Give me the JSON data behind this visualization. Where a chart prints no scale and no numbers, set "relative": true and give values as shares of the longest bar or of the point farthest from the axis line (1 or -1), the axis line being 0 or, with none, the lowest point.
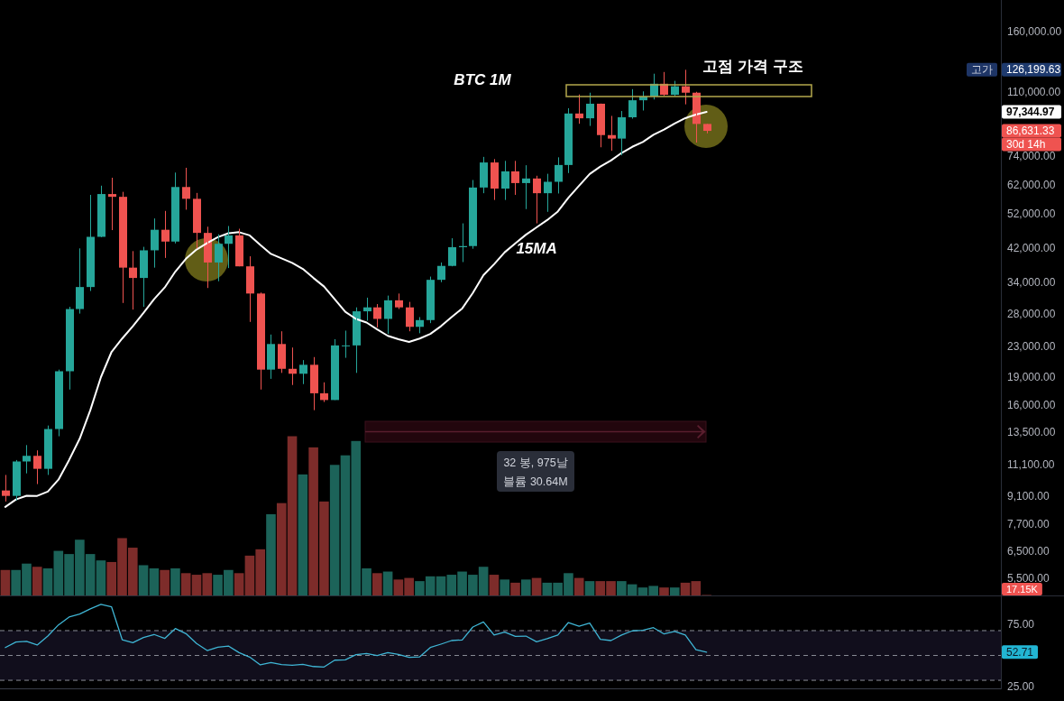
{
  "chart_data": [
    {
      "type": "candlestick",
      "title": "BTC 1M",
      "tick_labels": "y",
      "log": true,
      "ylim": [
        4950,
        194000
      ],
      "yticks": [
        {
          "value": 160000,
          "label": "160,000.00"
        },
        {
          "value": 110000,
          "label": "110,000.00"
        },
        {
          "value": 74000,
          "label": "74,000.00"
        },
        {
          "value": 62000,
          "label": "62,000.00"
        },
        {
          "value": 52000,
          "label": "52,000.00"
        },
        {
          "value": 42000,
          "label": "42,000.00"
        },
        {
          "value": 34000,
          "label": "34,000.00"
        },
        {
          "value": 28000,
          "label": "28,000.00"
        },
        {
          "value": 23000,
          "label": "23,000.00"
        },
        {
          "value": 19000,
          "label": "19,000.00"
        },
        {
          "value": 16000,
          "label": "16,000.00"
        },
        {
          "value": 13500,
          "label": "13,500.00"
        },
        {
          "value": 11100,
          "label": "11,100.00"
        },
        {
          "value": 9100,
          "label": "9,100.00"
        },
        {
          "value": 7700,
          "label": "7,700.00"
        },
        {
          "value": 6500,
          "label": "6,500.00"
        },
        {
          "value": 5500,
          "label": "5,500.00"
        }
      ],
      "categories": [
        null,
        null,
        null,
        null,
        null,
        null,
        null,
        null,
        null,
        null,
        null,
        null,
        null,
        null,
        null,
        null,
        null,
        null,
        null,
        null,
        null,
        null,
        null,
        null,
        null,
        null,
        null,
        null,
        null,
        null,
        null,
        null,
        null,
        null,
        null,
        null,
        null,
        null,
        null,
        null,
        null,
        null,
        null,
        null,
        null,
        null,
        null,
        null,
        null,
        null,
        null,
        null,
        null,
        null,
        null,
        null,
        null,
        null,
        null,
        null,
        null,
        null,
        null,
        null,
        null,
        null,
        null
      ],
      "ohlc": [
        [
          9450,
          10400,
          8830,
          9140
        ],
        [
          9140,
          11400,
          8890,
          11300
        ],
        [
          11300,
          12500,
          10500,
          11700
        ],
        [
          11700,
          12100,
          9830,
          10800
        ],
        [
          10800,
          14100,
          10400,
          13800
        ],
        [
          13800,
          19900,
          13200,
          19700
        ],
        [
          19700,
          29300,
          17600,
          28900
        ],
        [
          28900,
          42000,
          28100,
          33100
        ],
        [
          33100,
          58400,
          32300,
          45100
        ],
        [
          45100,
          61800,
          45000,
          58700
        ],
        [
          58700,
          64900,
          47000,
          57700
        ],
        [
          57700,
          59500,
          30000,
          37300
        ],
        [
          37300,
          41300,
          28800,
          35000
        ],
        [
          35000,
          42400,
          29300,
          41500
        ],
        [
          41500,
          50500,
          37300,
          47100
        ],
        [
          47100,
          52900,
          39600,
          43800
        ],
        [
          43800,
          67000,
          43300,
          61300
        ],
        [
          61300,
          69000,
          53300,
          57000
        ],
        [
          57000,
          59100,
          42000,
          46200
        ],
        [
          46200,
          48000,
          32900,
          38500
        ],
        [
          38500,
          45800,
          34300,
          43200
        ],
        [
          43200,
          48200,
          37200,
          45500
        ],
        [
          45500,
          47400,
          37600,
          37600
        ],
        [
          37600,
          40000,
          26700,
          31800
        ],
        [
          31800,
          32000,
          17600,
          19900
        ],
        [
          19900,
          24700,
          18800,
          23300
        ],
        [
          23300,
          25200,
          19500,
          20000
        ],
        [
          20000,
          22800,
          18100,
          19400
        ],
        [
          19400,
          21100,
          18200,
          20500
        ],
        [
          20500,
          21500,
          15500,
          17200
        ],
        [
          17200,
          18400,
          16300,
          16500
        ],
        [
          16500,
          24000,
          16500,
          23100
        ],
        [
          23100,
          25300,
          21400,
          23100
        ],
        [
          23100,
          29200,
          19500,
          28500
        ],
        [
          28500,
          31000,
          26900,
          29200
        ],
        [
          29200,
          29800,
          25800,
          27200
        ],
        [
          27200,
          31400,
          24800,
          30500
        ],
        [
          30500,
          31800,
          28900,
          29200
        ],
        [
          29200,
          30200,
          25200,
          25900
        ],
        [
          25900,
          27500,
          24900,
          27000
        ],
        [
          27000,
          35300,
          26500,
          34600
        ],
        [
          34600,
          38500,
          34100,
          37700
        ],
        [
          37700,
          44700,
          37600,
          42300
        ],
        [
          42300,
          49000,
          38600,
          42600
        ],
        [
          42600,
          64000,
          41900,
          61100
        ],
        [
          61100,
          73800,
          59000,
          71300
        ],
        [
          71300,
          72800,
          56600,
          60700
        ],
        [
          60700,
          72000,
          56600,
          67500
        ],
        [
          67500,
          72000,
          58400,
          62800
        ],
        [
          62800,
          70100,
          53500,
          64600
        ],
        [
          64600,
          65700,
          49000,
          59000
        ],
        [
          59000,
          66500,
          52600,
          63300
        ],
        [
          63300,
          73600,
          58900,
          70200
        ],
        [
          70200,
          99600,
          66800,
          96400
        ],
        [
          96400,
          108400,
          90500,
          93600
        ],
        [
          93600,
          109600,
          89300,
          102400
        ],
        [
          102400,
          102500,
          78300,
          84400
        ],
        [
          84400,
          95000,
          76600,
          82600
        ],
        [
          82600,
          97900,
          74500,
          94200
        ],
        [
          94200,
          112000,
          93400,
          104600
        ],
        [
          104600,
          110500,
          98200,
          107100
        ],
        [
          107100,
          123200,
          105100,
          115800
        ],
        [
          115800,
          124500,
          107400,
          108200
        ],
        [
          108200,
          117900,
          107300,
          114000
        ],
        [
          114000,
          126199.63,
          102000,
          109600
        ],
        [
          109600,
          110200,
          80600,
          90400
        ],
        [
          90400,
          90400,
          85300,
          86631.33
        ]
      ],
      "colors": [
        "#ef5350",
        "#26a69a",
        "#26a69a",
        "#ef5350",
        "#26a69a",
        "#26a69a",
        "#26a69a",
        "#26a69a",
        "#26a69a",
        "#26a69a",
        "#ef5350",
        "#ef5350",
        "#ef5350",
        "#26a69a",
        "#26a69a",
        "#ef5350",
        "#26a69a",
        "#ef5350",
        "#ef5350",
        "#ef5350",
        "#26a69a",
        "#26a69a",
        "#ef5350",
        "#ef5350",
        "#ef5350",
        "#26a69a",
        "#ef5350",
        "#ef5350",
        "#26a69a",
        "#ef5350",
        "#ef5350",
        "#26a69a",
        "#26a69a",
        "#26a69a",
        "#26a69a",
        "#ef5350",
        "#26a69a",
        "#ef5350",
        "#ef5350",
        "#26a69a",
        "#26a69a",
        "#26a69a",
        "#26a69a",
        "#26a69a",
        "#26a69a",
        "#26a69a",
        "#ef5350",
        "#26a69a",
        "#ef5350",
        "#26a69a",
        "#ef5350",
        "#26a69a",
        "#26a69a",
        "#26a69a",
        "#ef5350",
        "#26a69a",
        "#ef5350",
        "#ef5350",
        "#26a69a",
        "#26a69a",
        "#26a69a",
        "#26a69a",
        "#ef5350",
        "#26a69a",
        "#ef5350",
        "#ef5350",
        "#ef5350"
      ],
      "series": [
        {
          "type": "line",
          "name": "15MA",
          "color": "#ffffff",
          "values": [
            8540,
            8940,
            9150,
            9140,
            9390,
            10100,
            11400,
            13000,
            15500,
            19000,
            22200,
            24100,
            26000,
            28200,
            30700,
            33000,
            36400,
            39400,
            41700,
            43400,
            45000,
            46100,
            46400,
            45500,
            42900,
            40600,
            39500,
            38400,
            37000,
            35000,
            33200,
            30700,
            28400,
            27200,
            26600,
            25500,
            24500,
            24000,
            23600,
            24100,
            24800,
            26000,
            27500,
            29000,
            31900,
            35600,
            38100,
            41000,
            43300,
            45700,
            47800,
            50000,
            52700,
            57400,
            61800,
            66400,
            69500,
            72200,
            75600,
            78500,
            80900,
            84600,
            87300,
            90700,
            93700,
            95800,
            97344.97
          ]
        }
      ],
      "annotations": [
        "고가",
        "126,199.63",
        "97,344.97",
        "86,631.33",
        "30d 14h",
        "고점 가격 구조",
        "32 봉, 975날",
        "블륨 30.64M"
      ]
    },
    {
      "type": "bar",
      "relative": true,
      "categories": [
        null,
        null,
        null,
        null,
        null,
        null,
        null,
        null,
        null,
        null,
        null,
        null,
        null,
        null,
        null,
        null,
        null,
        null,
        null,
        null,
        null,
        null,
        null,
        null,
        null,
        null,
        null,
        null,
        null,
        null,
        null,
        null,
        null,
        null,
        null,
        null,
        null,
        null,
        null,
        null,
        null,
        null,
        null,
        null,
        null,
        null,
        null,
        null,
        null,
        null,
        null,
        null,
        null,
        null,
        null,
        null,
        null,
        null,
        null,
        null,
        null,
        null,
        null,
        null,
        null,
        null,
        null
      ],
      "values": [
        0.16,
        0.16,
        0.2,
        0.18,
        0.17,
        0.28,
        0.26,
        0.35,
        0.26,
        0.22,
        0.21,
        0.36,
        0.3,
        0.19,
        0.17,
        0.16,
        0.17,
        0.14,
        0.13,
        0.14,
        0.13,
        0.16,
        0.14,
        0.25,
        0.29,
        0.51,
        0.58,
        1,
        0.76,
        0.93,
        0.59,
        0.82,
        0.88,
        0.97,
        0.17,
        0.14,
        0.15,
        0.1,
        0.11,
        0.09,
        0.12,
        0.12,
        0.13,
        0.15,
        0.13,
        0.18,
        0.13,
        0.1,
        0.08,
        0.1,
        0.11,
        0.08,
        0.08,
        0.14,
        0.11,
        0.09,
        0.09,
        0.09,
        0.09,
        0.07,
        0.05,
        0.06,
        0.05,
        0.05,
        0.08,
        0.09,
        0.003
      ],
      "colors": [
        "#7d2c2a",
        "#1c6359",
        "#1c6359",
        "#7d2c2a",
        "#1c6359",
        "#1c6359",
        "#1c6359",
        "#1c6359",
        "#1c6359",
        "#1c6359",
        "#7d2c2a",
        "#7d2c2a",
        "#7d2c2a",
        "#1c6359",
        "#1c6359",
        "#7d2c2a",
        "#1c6359",
        "#7d2c2a",
        "#7d2c2a",
        "#7d2c2a",
        "#1c6359",
        "#1c6359",
        "#7d2c2a",
        "#7d2c2a",
        "#7d2c2a",
        "#1c6359",
        "#7d2c2a",
        "#7d2c2a",
        "#1c6359",
        "#7d2c2a",
        "#7d2c2a",
        "#1c6359",
        "#1c6359",
        "#1c6359",
        "#1c6359",
        "#7d2c2a",
        "#1c6359",
        "#7d2c2a",
        "#7d2c2a",
        "#1c6359",
        "#1c6359",
        "#1c6359",
        "#1c6359",
        "#1c6359",
        "#1c6359",
        "#1c6359",
        "#7d2c2a",
        "#1c6359",
        "#7d2c2a",
        "#1c6359",
        "#7d2c2a",
        "#1c6359",
        "#1c6359",
        "#1c6359",
        "#7d2c2a",
        "#1c6359",
        "#7d2c2a",
        "#7d2c2a",
        "#1c6359",
        "#1c6359",
        "#1c6359",
        "#1c6359",
        "#7d2c2a",
        "#1c6359",
        "#7d2c2a",
        "#7d2c2a",
        "#7d2c2a"
      ],
      "annotations": [
        "17.15K"
      ]
    },
    {
      "type": "line",
      "tick_labels": "y",
      "ylim": [
        23.5,
        97.6
      ],
      "yticks": [
        {
          "value": 75,
          "label": "75.00"
        },
        {
          "value": 25,
          "label": "25.00"
        }
      ],
      "categories": [
        null,
        null,
        null,
        null,
        null,
        null,
        null,
        null,
        null,
        null,
        null,
        null,
        null,
        null,
        null,
        null,
        null,
        null,
        null,
        null,
        null,
        null,
        null,
        null,
        null,
        null,
        null,
        null,
        null,
        null,
        null,
        null,
        null,
        null,
        null,
        null,
        null,
        null,
        null,
        null,
        null,
        null,
        null,
        null,
        null,
        null,
        null,
        null,
        null,
        null,
        null,
        null,
        null,
        null,
        null,
        null,
        null,
        null,
        null,
        null,
        null,
        null,
        null,
        null,
        null,
        null,
        null
      ],
      "series": [
        {
          "color": "#3fb5d4",
          "values": [
            56.4,
            60.8,
            61.3,
            58.4,
            65.6,
            74.6,
            80.9,
            83.3,
            87.5,
            91.1,
            89.1,
            62.7,
            60.3,
            64.4,
            66.9,
            63.7,
            71.7,
            67.6,
            59.6,
            54.0,
            56.7,
            57.6,
            52.3,
            48.7,
            42.4,
            44.3,
            42.6,
            42.1,
            42.9,
            41.1,
            40.7,
            46.2,
            46.5,
            50.6,
            51.6,
            49.9,
            52.3,
            50.9,
            48.4,
            48.9,
            56.4,
            59.1,
            62.0,
            62.5,
            72.9,
            77.0,
            66.4,
            68.8,
            65.4,
            65.6,
            61.0,
            63.5,
            66.4,
            76.5,
            73.6,
            76.1,
            63.0,
            62.0,
            66.4,
            69.8,
            70.2,
            72.4,
            67.3,
            69.3,
            66.4,
            54.7,
            52.71
          ]
        }
      ],
      "bands": [
        {
          "axis": "y",
          "from": 30,
          "to": 70,
          "color": "#110e1c"
        }
      ],
      "ref_lines": [
        {
          "axis": "y",
          "value": 70,
          "color": "#8a8d96",
          "line_style": "dashed"
        },
        {
          "axis": "y",
          "value": 50,
          "color": "#8a8d96",
          "line_style": "dashed"
        },
        {
          "axis": "y",
          "value": 30,
          "color": "#8a8d96",
          "line_style": "dashed"
        }
      ],
      "annotations": [
        "52.71"
      ]
    }
  ]
}
